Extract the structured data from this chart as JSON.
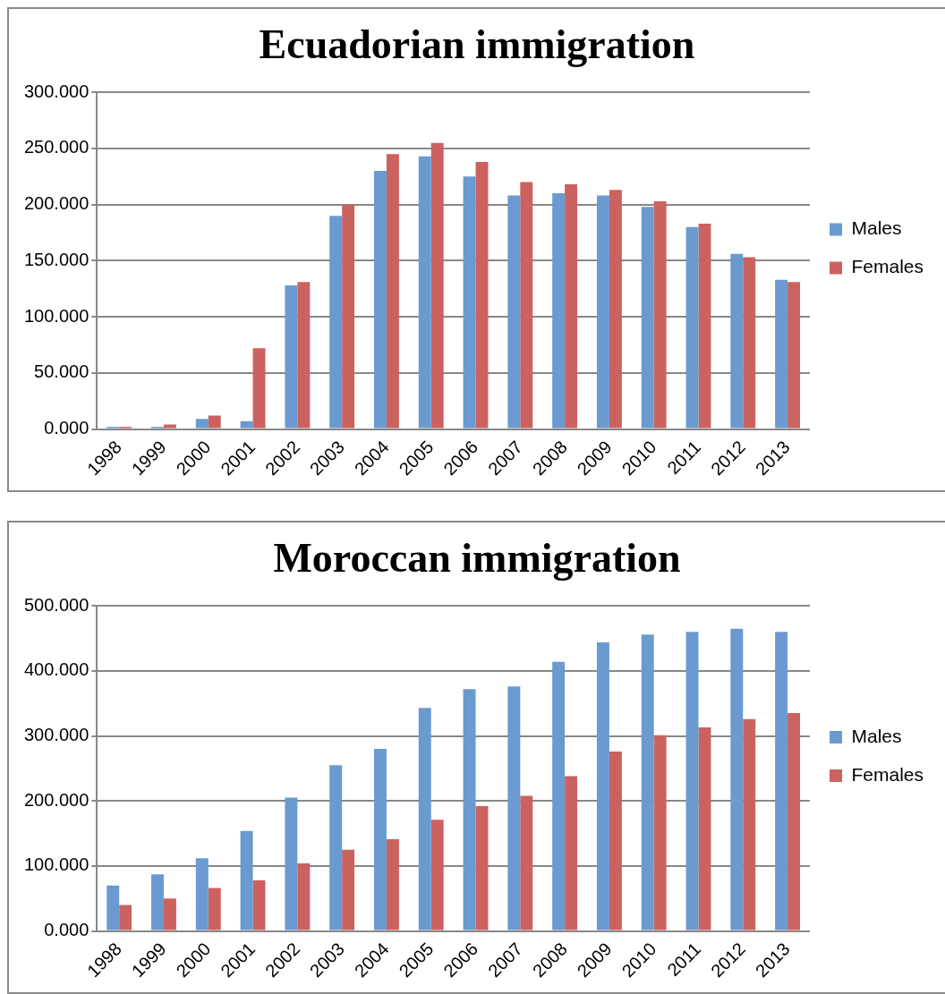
{
  "chart_data": [
    {
      "type": "bar",
      "title": "Ecuadorian immigration",
      "categories": [
        "1998",
        "1999",
        "2000",
        "2001",
        "2002",
        "2003",
        "2004",
        "2005",
        "2006",
        "2007",
        "2008",
        "2009",
        "2010",
        "2011",
        "2012",
        "2013"
      ],
      "series": [
        {
          "name": "Males",
          "color": "#6a9ad0",
          "values": [
            2,
            2,
            9,
            7,
            128,
            190,
            230,
            243,
            225,
            208,
            210,
            208,
            198,
            180,
            156,
            133
          ]
        },
        {
          "name": "Females",
          "color": "#cc625f",
          "values": [
            2,
            4,
            12,
            72,
            131,
            200,
            245,
            255,
            238,
            220,
            218,
            213,
            203,
            183,
            153,
            131
          ]
        }
      ],
      "ylim": [
        0,
        300
      ],
      "yticks": [
        {
          "value": 0,
          "label": "0.000"
        },
        {
          "value": 50,
          "label": "50.000"
        },
        {
          "value": 100,
          "label": "100.000"
        },
        {
          "value": 150,
          "label": "150.000"
        },
        {
          "value": 200,
          "label": "200.000"
        },
        {
          "value": 250,
          "label": "250.000"
        },
        {
          "value": 300,
          "label": "300.000"
        }
      ],
      "grid": "y",
      "legend": "right"
    },
    {
      "type": "bar",
      "title": "Moroccan immigration",
      "categories": [
        "1998",
        "1999",
        "2000",
        "2001",
        "2002",
        "2003",
        "2004",
        "2005",
        "2006",
        "2007",
        "2008",
        "2009",
        "2010",
        "2011",
        "2012",
        "2013"
      ],
      "series": [
        {
          "name": "Males",
          "color": "#6a9ad0",
          "values": [
            70,
            87,
            112,
            154,
            205,
            255,
            280,
            343,
            372,
            376,
            414,
            444,
            456,
            460,
            465,
            460
          ]
        },
        {
          "name": "Females",
          "color": "#cc625f",
          "values": [
            40,
            50,
            66,
            78,
            104,
            125,
            141,
            171,
            192,
            208,
            238,
            276,
            301,
            313,
            326,
            335
          ]
        }
      ],
      "ylim": [
        0,
        500
      ],
      "yticks": [
        {
          "value": 0,
          "label": "0.000"
        },
        {
          "value": 100,
          "label": "100.000"
        },
        {
          "value": 200,
          "label": "200.000"
        },
        {
          "value": 300,
          "label": "300.000"
        },
        {
          "value": 400,
          "label": "400.000"
        },
        {
          "value": 500,
          "label": "500.000"
        }
      ],
      "grid": "y",
      "legend": "right"
    }
  ]
}
